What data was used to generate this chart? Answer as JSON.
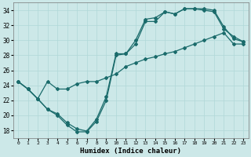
{
  "xlabel": "Humidex (Indice chaleur)",
  "xlim": [
    -0.5,
    23.5
  ],
  "ylim": [
    17.0,
    35.0
  ],
  "yticks": [
    18,
    20,
    22,
    24,
    26,
    28,
    30,
    32,
    34
  ],
  "xticks": [
    0,
    1,
    2,
    3,
    4,
    5,
    6,
    7,
    8,
    9,
    10,
    11,
    12,
    13,
    14,
    15,
    16,
    17,
    18,
    19,
    20,
    21,
    22,
    23
  ],
  "bg_color": "#cce8e8",
  "line_color": "#1a6b6b",
  "grid_color": "#b0d8d8",
  "line1": [
    [
      0,
      24.5
    ],
    [
      1,
      23.5
    ],
    [
      2,
      22.2
    ],
    [
      3,
      20.8
    ],
    [
      4,
      20.0
    ],
    [
      5,
      18.7
    ],
    [
      6,
      17.8
    ],
    [
      7,
      17.8
    ],
    [
      8,
      19.2
    ],
    [
      9,
      22.0
    ],
    [
      10,
      28.0
    ],
    [
      11,
      28.2
    ],
    [
      12,
      29.5
    ],
    [
      13,
      32.5
    ],
    [
      14,
      32.5
    ],
    [
      15,
      33.8
    ],
    [
      16,
      33.5
    ],
    [
      17,
      34.2
    ],
    [
      18,
      34.2
    ],
    [
      19,
      34.0
    ],
    [
      20,
      33.8
    ],
    [
      21,
      31.5
    ],
    [
      22,
      30.5
    ],
    [
      23,
      29.8
    ]
  ],
  "line2": [
    [
      0,
      24.5
    ],
    [
      1,
      23.5
    ],
    [
      2,
      22.2
    ],
    [
      3,
      20.8
    ],
    [
      4,
      20.2
    ],
    [
      5,
      19.0
    ],
    [
      6,
      18.2
    ],
    [
      7,
      17.9
    ],
    [
      8,
      19.5
    ],
    [
      9,
      22.5
    ],
    [
      10,
      28.2
    ],
    [
      11,
      28.2
    ],
    [
      12,
      30.0
    ],
    [
      13,
      32.8
    ],
    [
      14,
      33.0
    ],
    [
      15,
      33.8
    ],
    [
      16,
      33.5
    ],
    [
      17,
      34.2
    ],
    [
      18,
      34.2
    ],
    [
      19,
      34.2
    ],
    [
      20,
      34.0
    ],
    [
      21,
      31.8
    ],
    [
      22,
      30.2
    ],
    [
      23,
      29.8
    ]
  ],
  "line3": [
    [
      0,
      24.5
    ],
    [
      1,
      23.5
    ],
    [
      2,
      22.2
    ],
    [
      3,
      24.5
    ],
    [
      4,
      23.5
    ],
    [
      5,
      23.5
    ],
    [
      6,
      24.2
    ],
    [
      7,
      24.5
    ],
    [
      8,
      24.5
    ],
    [
      9,
      25.0
    ],
    [
      10,
      25.5
    ],
    [
      11,
      26.5
    ],
    [
      12,
      27.0
    ],
    [
      13,
      27.5
    ],
    [
      14,
      27.8
    ],
    [
      15,
      28.2
    ],
    [
      16,
      28.5
    ],
    [
      17,
      29.0
    ],
    [
      18,
      29.5
    ],
    [
      19,
      30.0
    ],
    [
      20,
      30.5
    ],
    [
      21,
      31.0
    ],
    [
      22,
      29.5
    ],
    [
      23,
      29.5
    ]
  ]
}
